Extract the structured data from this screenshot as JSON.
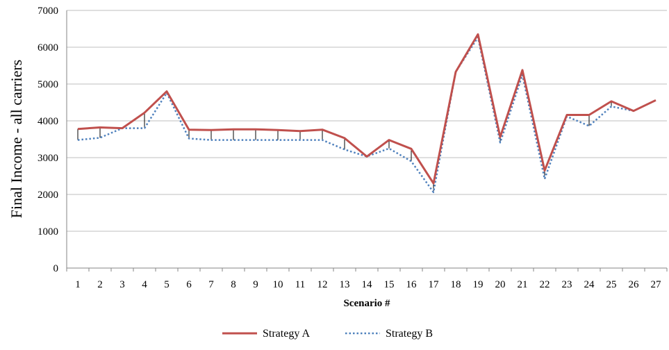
{
  "chart_data": {
    "type": "line",
    "title": "",
    "xlabel": "Scenario #",
    "ylabel": "Final Income - all carriers",
    "ylim": [
      0,
      7000
    ],
    "y_ticks": [
      0,
      1000,
      2000,
      3000,
      4000,
      5000,
      6000,
      7000
    ],
    "grid": "horizontal",
    "legend_position": "bottom",
    "categories": [
      "1",
      "2",
      "3",
      "4",
      "5",
      "6",
      "7",
      "8",
      "9",
      "10",
      "11",
      "12",
      "13",
      "14",
      "15",
      "16",
      "17",
      "18",
      "19",
      "20",
      "21",
      "22",
      "23",
      "24",
      "25",
      "26",
      "27"
    ],
    "series": [
      {
        "name": "Strategy A",
        "color": "#C0504D",
        "style": "solid",
        "values": [
          3780,
          3820,
          3800,
          4220,
          4800,
          3760,
          3750,
          3770,
          3770,
          3750,
          3720,
          3760,
          3530,
          3030,
          3480,
          3240,
          2300,
          5330,
          6350,
          3560,
          5380,
          2650,
          4160,
          4160,
          4530,
          4270,
          4560
        ]
      },
      {
        "name": "Strategy B",
        "color": "#4F81BD",
        "style": "dotted",
        "values": [
          3480,
          3540,
          3800,
          3800,
          4760,
          3520,
          3480,
          3480,
          3480,
          3480,
          3480,
          3480,
          3220,
          3030,
          3250,
          2900,
          2060,
          5330,
          6270,
          3410,
          5250,
          2420,
          4120,
          3860,
          4390,
          4270,
          4560
        ]
      }
    ],
    "drop_line_color": "#000000"
  }
}
